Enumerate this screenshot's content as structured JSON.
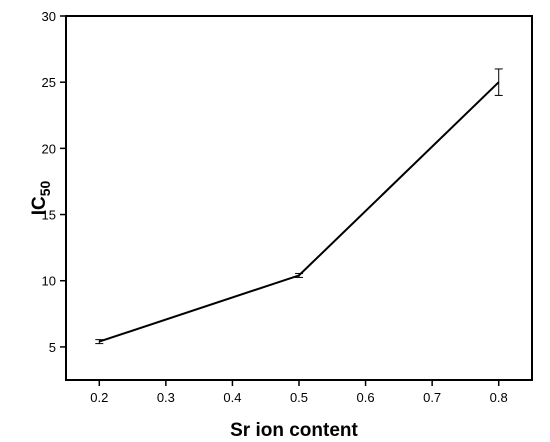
{
  "chart_data": {
    "type": "line",
    "title": "",
    "xlabel": "Sr ion content",
    "ylabel_main": "IC",
    "ylabel_sub": "50",
    "x": [
      0.2,
      0.5,
      0.8
    ],
    "series": [
      {
        "values": [
          5.4,
          10.4,
          25.0
        ],
        "errors": [
          0.15,
          0.15,
          1.0
        ],
        "color": "#000000"
      }
    ],
    "xlim": [
      0.15,
      0.85
    ],
    "ylim": [
      2.5,
      30
    ],
    "xticks": [
      0.2,
      0.3,
      0.4,
      0.5,
      0.6,
      0.7,
      0.8
    ],
    "xtick_labels": [
      "0.2",
      "0.3",
      "0.4",
      "0.5",
      "0.6",
      "0.7",
      "0.8"
    ],
    "yticks": [
      5,
      10,
      15,
      20,
      25,
      30
    ],
    "ytick_labels": [
      "5",
      "10",
      "15",
      "20",
      "25",
      "30"
    ],
    "grid": false,
    "legend": "none"
  }
}
